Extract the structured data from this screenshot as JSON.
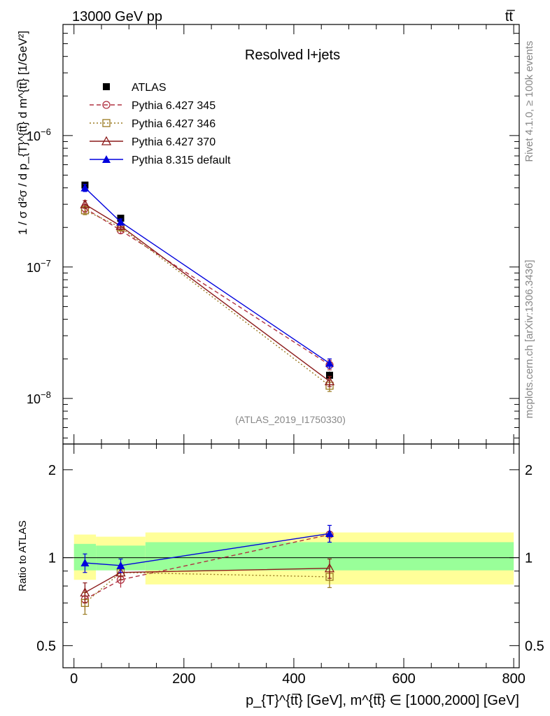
{
  "header": {
    "energy_label": "13000 GeV pp",
    "process_label": "tt̅"
  },
  "side": {
    "rivet_label": "Rivet 4.1.0, ≥ 100k events",
    "source_label": "mcplots.cern.ch [arXiv:1306.3436]"
  },
  "chart_data": [
    {
      "type": "line",
      "panel": "main",
      "title": "Resolved l+jets",
      "analysis_label": "(ATLAS_2019_I1750330)",
      "ylabel": "1 / σ d²σ / d p_{T}^{tt̅} d m^{tt̅} [1/GeV²]",
      "yscale": "log",
      "ylim": [
        4.5e-09,
        7e-06
      ],
      "xlim": [
        -20,
        810
      ],
      "y_ticks": [
        {
          "value": 1e-08,
          "mant": "10",
          "exp": "−8"
        },
        {
          "value": 1e-07,
          "mant": "10",
          "exp": "−7"
        },
        {
          "value": 1e-06,
          "mant": "10",
          "exp": "−6"
        }
      ],
      "series": [
        {
          "name": "ATLAS",
          "color": "#000000",
          "marker": "square-filled",
          "x": [
            20,
            85,
            465
          ],
          "y": [
            4.2e-07,
            2.35e-07,
            1.5e-08
          ],
          "xerr": [
            20,
            45,
            335
          ],
          "yerr": [
            2e-08,
            1.2e-08,
            1e-09
          ]
        },
        {
          "name": "Pythia 6.427 345",
          "color": "#b03040",
          "marker": "circle-open",
          "dash": "6,4",
          "x": [
            20,
            85,
            465
          ],
          "y": [
            2.8e-07,
            1.9e-07,
            1.8e-08
          ],
          "yerr": [
            2e-08,
            1e-08,
            1.5e-09
          ]
        },
        {
          "name": "Pythia 6.427 346",
          "color": "#9a7a20",
          "marker": "square-open",
          "dash": "2,3",
          "x": [
            20,
            85,
            465
          ],
          "y": [
            2.7e-07,
            2e-07,
            1.25e-08
          ],
          "yerr": [
            2e-08,
            1e-08,
            1.2e-09
          ]
        },
        {
          "name": "Pythia 6.427 370",
          "color": "#8b1a1a",
          "marker": "triangle-open",
          "dash": "",
          "x": [
            20,
            85,
            465
          ],
          "y": [
            3e-07,
            2.05e-07,
            1.35e-08
          ],
          "yerr": [
            2e-08,
            1e-08,
            1.2e-09
          ]
        },
        {
          "name": "Pythia 8.315 default",
          "color": "#0000dd",
          "marker": "triangle-filled",
          "dash": "",
          "x": [
            20,
            85,
            465
          ],
          "y": [
            4e-07,
            2.2e-07,
            1.85e-08
          ],
          "yerr": [
            2.5e-08,
            1.2e-08,
            1.5e-09
          ]
        }
      ]
    },
    {
      "type": "line",
      "panel": "ratio",
      "ylabel": "Ratio to ATLAS",
      "xlabel": "p_{T}^{tt̅} [GeV], m^{tt̅} ∈ [1000,2000] [GeV]",
      "yscale": "log",
      "ylim": [
        0.42,
        2.45
      ],
      "xlim": [
        -20,
        810
      ],
      "y_ticks": [
        {
          "value": 0.5,
          "label": "0.5"
        },
        {
          "value": 1,
          "label": "1"
        },
        {
          "value": 2,
          "label": "2"
        }
      ],
      "x_ticks": [
        {
          "value": 0,
          "label": "0"
        },
        {
          "value": 200,
          "label": "200"
        },
        {
          "value": 400,
          "label": "400"
        },
        {
          "value": 600,
          "label": "600"
        },
        {
          "value": 800,
          "label": "800"
        }
      ],
      "bands": [
        {
          "x0": 0,
          "x1": 40,
          "green": [
            0.905,
            1.115
          ],
          "yellow": [
            0.84,
            1.2
          ]
        },
        {
          "x0": 40,
          "x1": 130,
          "green": [
            0.905,
            1.1
          ],
          "yellow": [
            0.91,
            1.18
          ]
        },
        {
          "x0": 130,
          "x1": 800,
          "green": [
            0.905,
            1.13
          ],
          "yellow": [
            0.81,
            1.22
          ]
        }
      ],
      "series": [
        {
          "name": "Pythia 6.427 345",
          "color": "#b03040",
          "marker": "circle-open",
          "dash": "6,4",
          "x": [
            20,
            85,
            465
          ],
          "y": [
            0.72,
            0.84,
            1.2
          ],
          "yerr": [
            0.06,
            0.05,
            0.07
          ]
        },
        {
          "name": "Pythia 6.427 346",
          "color": "#9a7a20",
          "marker": "square-open",
          "dash": "2,3",
          "x": [
            20,
            85,
            465
          ],
          "y": [
            0.7,
            0.89,
            0.86
          ],
          "yerr": [
            0.06,
            0.05,
            0.07
          ]
        },
        {
          "name": "Pythia 6.427 370",
          "color": "#8b1a1a",
          "marker": "triangle-open",
          "dash": "",
          "x": [
            20,
            85,
            465
          ],
          "y": [
            0.76,
            0.89,
            0.92
          ],
          "yerr": [
            0.06,
            0.05,
            0.07
          ]
        },
        {
          "name": "Pythia 8.315 default",
          "color": "#0000dd",
          "marker": "triangle-filled",
          "dash": "",
          "x": [
            20,
            85,
            465
          ],
          "y": [
            0.96,
            0.94,
            1.21
          ],
          "yerr": [
            0.07,
            0.05,
            0.08
          ]
        }
      ]
    }
  ]
}
